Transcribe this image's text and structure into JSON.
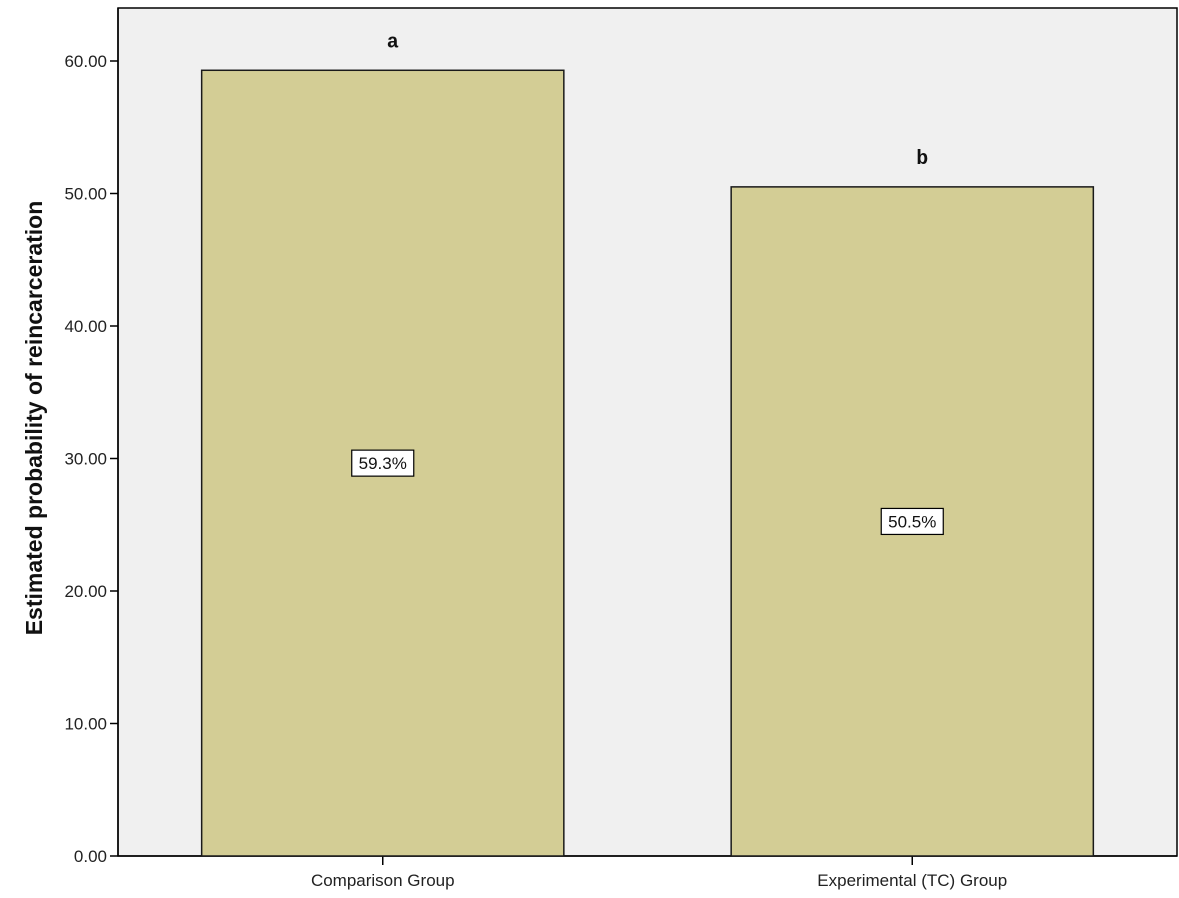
{
  "chart_data": {
    "type": "bar",
    "title": "",
    "xlabel": "",
    "ylabel": "Estimated probability of reincarceration",
    "categories": [
      "Comparison Group",
      "Experimental (TC) Group"
    ],
    "values": [
      59.3,
      50.5
    ],
    "data_labels": [
      "59.3%",
      "50.5%"
    ],
    "significance_letters": [
      "a",
      "b"
    ],
    "ylim": [
      0,
      64
    ],
    "yticks": [
      0,
      10,
      20,
      30,
      40,
      50,
      60
    ],
    "ytick_labels": [
      "0.00",
      "10.00",
      "20.00",
      "30.00",
      "40.00",
      "50.00",
      "60.00"
    ],
    "grid": false,
    "legend": "none",
    "colors": {
      "bar_fill": "#d3cd95",
      "bar_stroke": "#1a1a1a",
      "plot_background": "#f0f0f0",
      "axis": "#000000"
    }
  }
}
